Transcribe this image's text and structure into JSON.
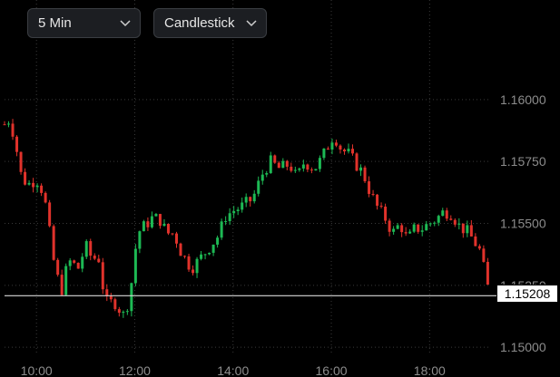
{
  "toolbar": {
    "interval": {
      "label": "5 Min",
      "icon": "chevron-down-icon"
    },
    "chart_type": {
      "label": "Candlestick",
      "icon": "chevron-down-icon"
    }
  },
  "colors": {
    "up": "#1db954",
    "down": "#e0322b",
    "grid": "#3a3a3a",
    "axis_text": "#8c8c8c",
    "price_line": "#d9d9d9",
    "background": "#000000"
  },
  "chart_data": {
    "type": "candlestick",
    "interval": "5 Min",
    "x_tick_labels": [
      "10:00",
      "12:00",
      "14:00",
      "16:00",
      "18:00"
    ],
    "x_ticks_hours": [
      10,
      12,
      14,
      16,
      18
    ],
    "y_tick_labels": [
      "1.16000",
      "1.15750",
      "1.15500",
      "1.15250",
      "1.15000"
    ],
    "y_ticks": [
      1.16,
      1.1575,
      1.155,
      1.1525,
      1.15
    ],
    "xlim_hours": [
      9.35,
      19.25
    ],
    "ylim": [
      1.14975,
      1.16175
    ],
    "grid": true,
    "last_price": 1.15208,
    "last_price_label": "1.15208",
    "close_path": [
      [
        9.35,
        1.159
      ],
      [
        9.45,
        1.1592
      ],
      [
        9.55,
        1.1585
      ],
      [
        9.7,
        1.1568
      ],
      [
        9.85,
        1.1566
      ],
      [
        10.0,
        1.1568
      ],
      [
        10.15,
        1.1562
      ],
      [
        10.35,
        1.1535
      ],
      [
        10.5,
        1.1522
      ],
      [
        10.65,
        1.1535
      ],
      [
        10.85,
        1.1532
      ],
      [
        11.0,
        1.1541
      ],
      [
        11.15,
        1.1535
      ],
      [
        11.25,
        1.1538
      ],
      [
        11.4,
        1.1518
      ],
      [
        11.6,
        1.1518
      ],
      [
        11.8,
        1.1512
      ],
      [
        11.95,
        1.1528
      ],
      [
        12.05,
        1.1546
      ],
      [
        12.2,
        1.1549
      ],
      [
        12.35,
        1.1552
      ],
      [
        12.5,
        1.1552
      ],
      [
        12.65,
        1.1546
      ],
      [
        12.8,
        1.1546
      ],
      [
        12.95,
        1.1538
      ],
      [
        13.15,
        1.1532
      ],
      [
        13.3,
        1.1535
      ],
      [
        13.5,
        1.154
      ],
      [
        13.7,
        1.1545
      ],
      [
        13.85,
        1.1553
      ],
      [
        14.0,
        1.1555
      ],
      [
        14.2,
        1.1557
      ],
      [
        14.4,
        1.156
      ],
      [
        14.6,
        1.157
      ],
      [
        14.75,
        1.1575
      ],
      [
        14.95,
        1.1572
      ],
      [
        15.15,
        1.1574
      ],
      [
        15.3,
        1.1568
      ],
      [
        15.45,
        1.1575
      ],
      [
        15.65,
        1.1572
      ],
      [
        15.8,
        1.1576
      ],
      [
        15.95,
        1.1582
      ],
      [
        16.05,
        1.1586
      ],
      [
        16.2,
        1.158
      ],
      [
        16.35,
        1.1578
      ],
      [
        16.5,
        1.1574
      ],
      [
        16.65,
        1.157
      ],
      [
        16.8,
        1.1562
      ],
      [
        16.95,
        1.1556
      ],
      [
        17.1,
        1.1552
      ],
      [
        17.25,
        1.1546
      ],
      [
        17.4,
        1.155
      ],
      [
        17.55,
        1.1543
      ],
      [
        17.7,
        1.1548
      ],
      [
        17.85,
        1.1548
      ],
      [
        18.0,
        1.155
      ],
      [
        18.15,
        1.1552
      ],
      [
        18.3,
        1.1555
      ],
      [
        18.45,
        1.1554
      ],
      [
        18.6,
        1.1549
      ],
      [
        18.75,
        1.1547
      ],
      [
        18.9,
        1.1543
      ],
      [
        19.05,
        1.1538
      ],
      [
        19.15,
        1.1526
      ],
      [
        19.25,
        1.15208
      ]
    ]
  }
}
